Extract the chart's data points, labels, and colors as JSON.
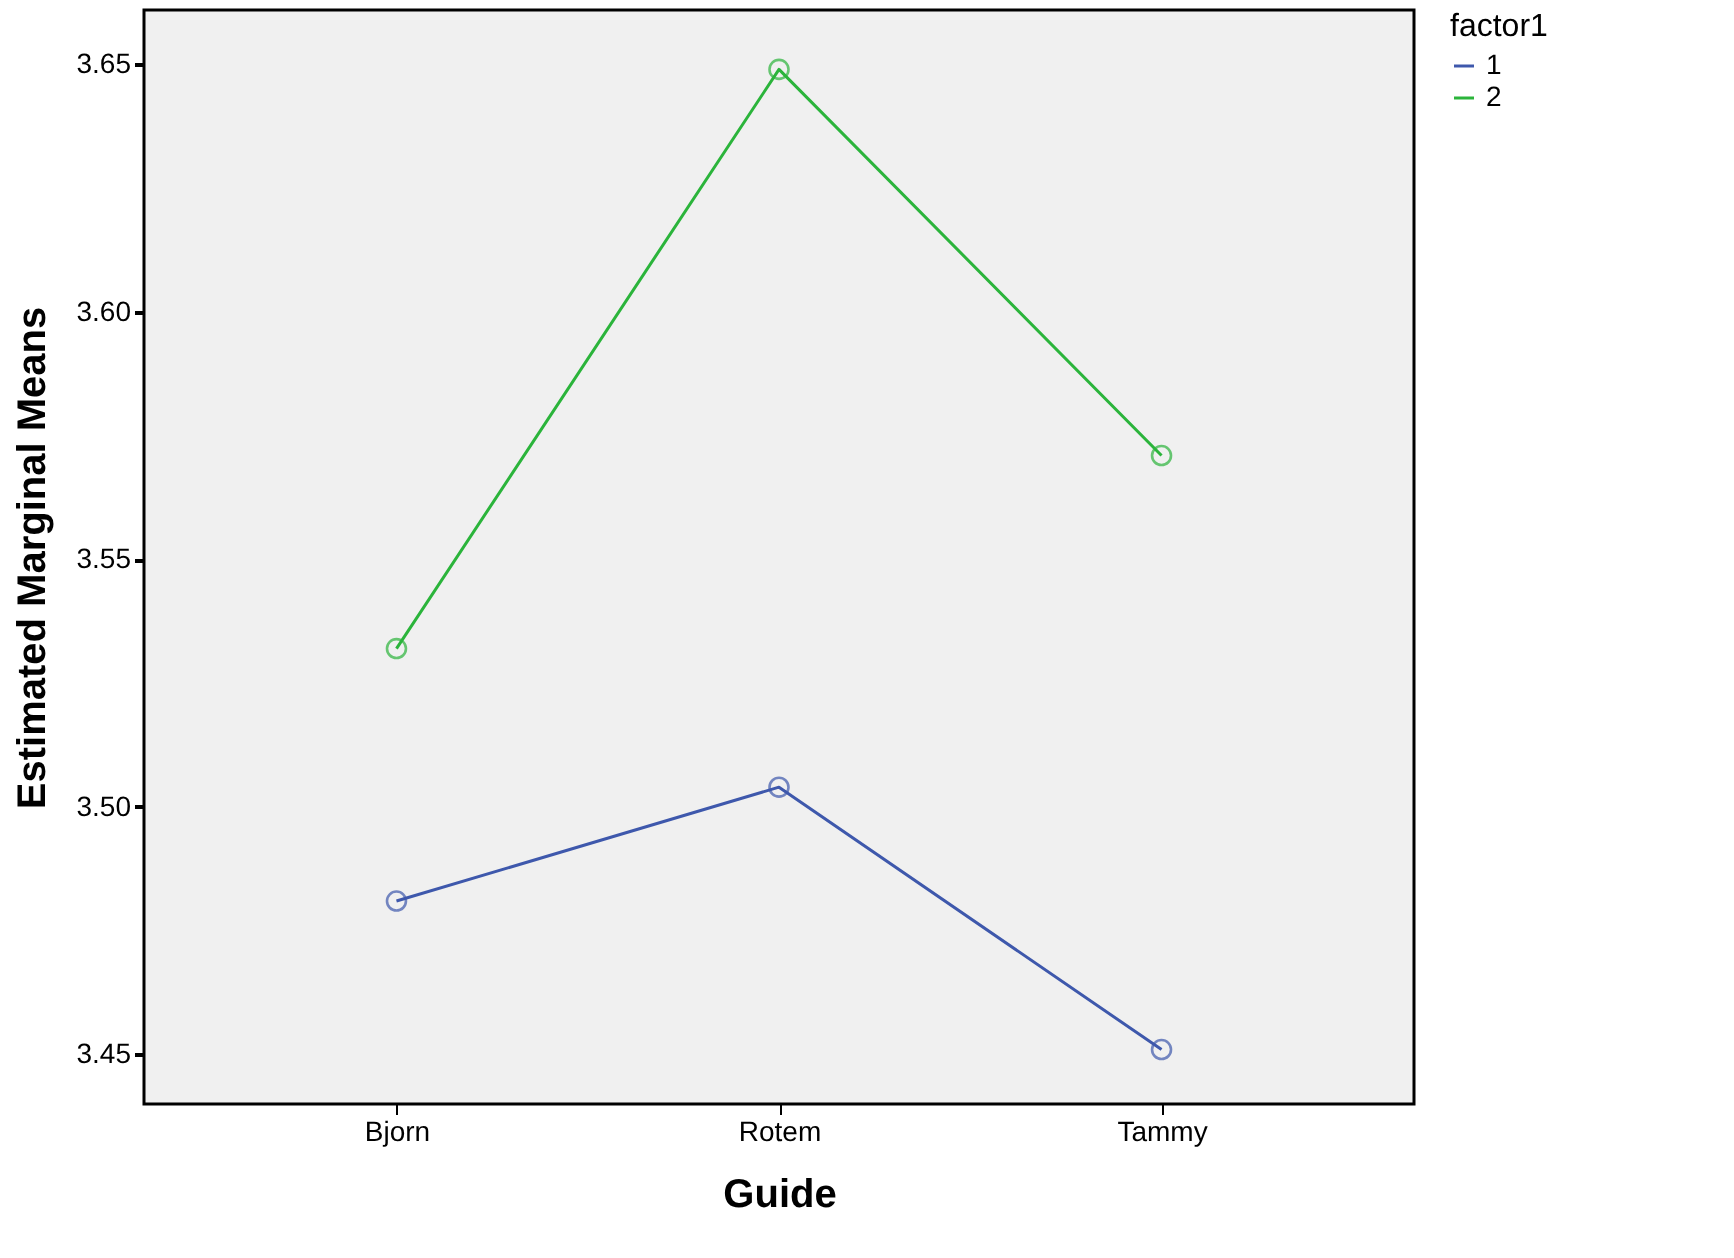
{
  "chart_data": {
    "type": "line",
    "xlabel": "Guide",
    "ylabel": "Estimated Marginal Means",
    "legend_title": "factor1",
    "categories": [
      "Bjorn",
      "Rotem",
      "Tammy"
    ],
    "series": [
      {
        "name": "1",
        "color": "#3e58ac",
        "values": [
          3.481,
          3.504,
          3.451
        ]
      },
      {
        "name": "2",
        "color": "#2bb43b",
        "values": [
          3.532,
          3.649,
          3.571
        ]
      }
    ],
    "ylim": [
      3.44,
      3.661
    ],
    "yticks": [
      {
        "value": 3.45,
        "label": "3.45"
      },
      {
        "value": 3.5,
        "label": "3.50"
      },
      {
        "value": 3.55,
        "label": "3.55"
      },
      {
        "value": 3.6,
        "label": "3.60"
      },
      {
        "value": 3.65,
        "label": "3.65"
      }
    ],
    "grid": false,
    "legend": "top right",
    "marker": "circle",
    "line_style": "solid"
  }
}
